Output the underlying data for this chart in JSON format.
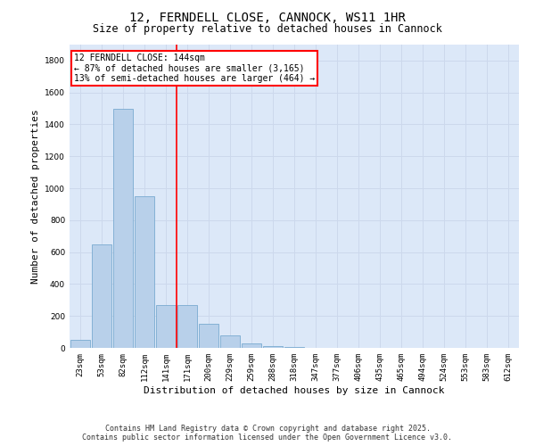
{
  "title_line1": "12, FERNDELL CLOSE, CANNOCK, WS11 1HR",
  "title_line2": "Size of property relative to detached houses in Cannock",
  "xlabel": "Distribution of detached houses by size in Cannock",
  "ylabel": "Number of detached properties",
  "categories": [
    "23sqm",
    "53sqm",
    "82sqm",
    "112sqm",
    "141sqm",
    "171sqm",
    "200sqm",
    "229sqm",
    "259sqm",
    "288sqm",
    "318sqm",
    "347sqm",
    "377sqm",
    "406sqm",
    "435sqm",
    "465sqm",
    "494sqm",
    "524sqm",
    "553sqm",
    "583sqm",
    "612sqm"
  ],
  "values": [
    50,
    650,
    1500,
    950,
    270,
    270,
    150,
    80,
    30,
    10,
    5,
    2,
    2,
    0,
    0,
    0,
    0,
    0,
    0,
    0,
    0
  ],
  "bar_color": "#b8d0ea",
  "bar_edge_color": "#7aaad0",
  "vline_x_index": 4.5,
  "annotation_text_line1": "12 FERNDELL CLOSE: 144sqm",
  "annotation_text_line2": "← 87% of detached houses are smaller (3,165)",
  "annotation_text_line3": "13% of semi-detached houses are larger (464) →",
  "annotation_box_facecolor": "white",
  "annotation_box_edgecolor": "red",
  "vline_color": "red",
  "ylim": [
    0,
    1900
  ],
  "yticks": [
    0,
    200,
    400,
    600,
    800,
    1000,
    1200,
    1400,
    1600,
    1800
  ],
  "grid_color": "#ccd8ec",
  "plot_bg_color": "#dce8f8",
  "fig_bg_color": "#ffffff",
  "title_fontsize": 10,
  "subtitle_fontsize": 8.5,
  "ylabel_fontsize": 8,
  "xlabel_fontsize": 8,
  "tick_fontsize": 6.5,
  "annotation_fontsize": 7,
  "footer_fontsize": 6,
  "footer_line1": "Contains HM Land Registry data © Crown copyright and database right 2025.",
  "footer_line2": "Contains public sector information licensed under the Open Government Licence v3.0."
}
